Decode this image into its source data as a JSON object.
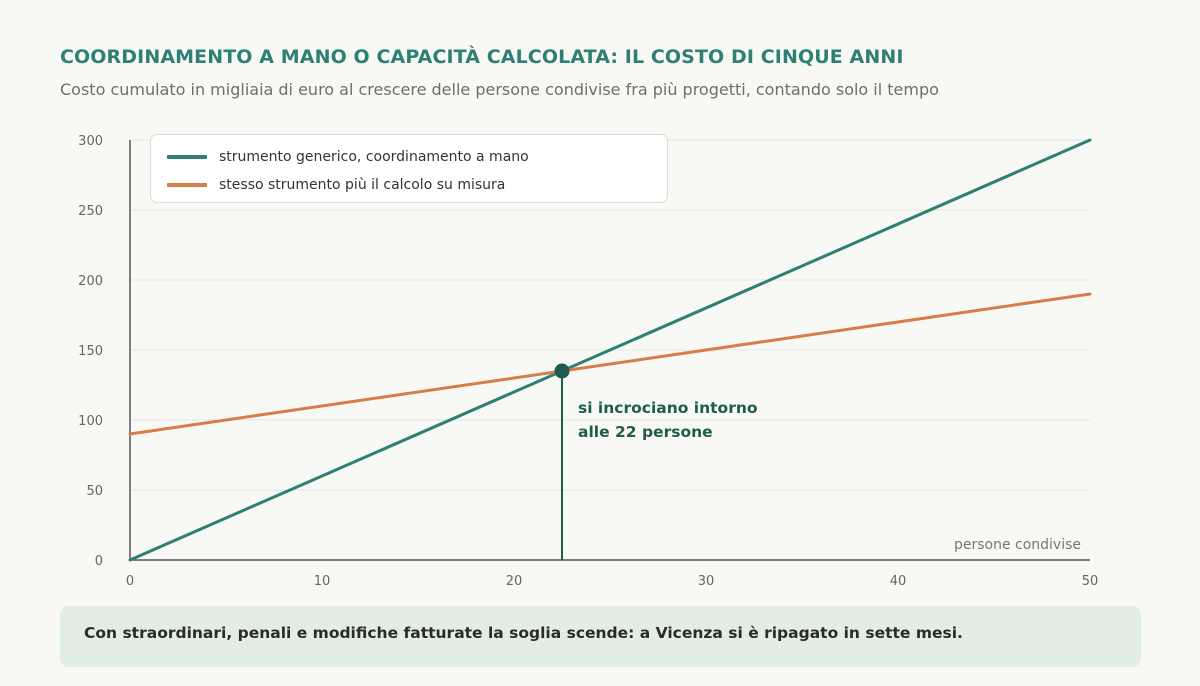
{
  "header": {
    "title": "COORDINAMENTO A MANO O CAPACITÀ CALCOLATA: IL COSTO DI CINQUE ANNI",
    "subtitle": "Costo cumulato in migliaia di euro al crescere delle persone condivise fra più progetti, contando solo il tempo"
  },
  "chart_data": {
    "type": "line",
    "xlabel": "persone condivise",
    "ylabel": "",
    "xlim": [
      0,
      50
    ],
    "ylim": [
      0,
      300
    ],
    "x_ticks": [
      0,
      10,
      20,
      30,
      40,
      50
    ],
    "y_ticks": [
      0,
      50,
      100,
      150,
      200,
      250,
      300
    ],
    "grid": "horizontal",
    "legend_position": "top-left",
    "series": [
      {
        "name": "strumento generico, coordinamento a mano",
        "color": "#2e7f74",
        "x": [
          0,
          50
        ],
        "y": [
          0,
          300
        ]
      },
      {
        "name": "stesso strumento più il calcolo su misura",
        "color": "#d67d4a",
        "x": [
          0,
          50
        ],
        "y": [
          90,
          190
        ]
      }
    ],
    "annotation": {
      "x": 22.5,
      "y": 135,
      "lines": [
        "si incrociano intorno",
        "alle 22 persone"
      ],
      "color": "#1f5c4e"
    }
  },
  "footer": {
    "note": "Con straordinari, penali e modifiche fatturate la soglia scende: a Vicenza si è ripagato in sette mesi."
  }
}
